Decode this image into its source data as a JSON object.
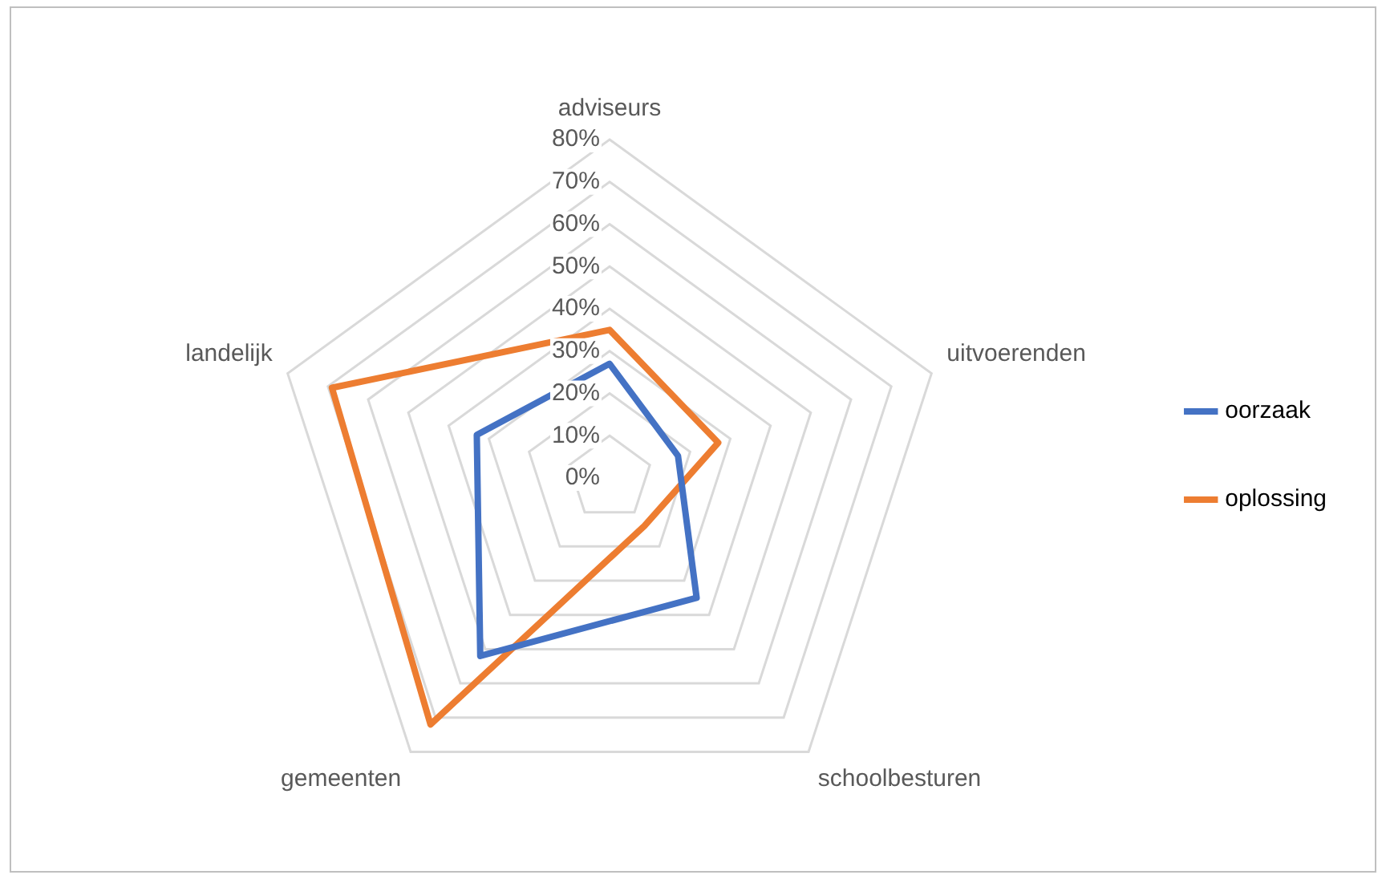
{
  "chart_data": {
    "type": "radar",
    "categories": [
      "adviseurs",
      "uitvoerenden",
      "schoolbesturen",
      "gemeenten",
      "landelijk"
    ],
    "series": [
      {
        "name": "oorzaak",
        "color": "#4472c4",
        "values": [
          27,
          17,
          35,
          52,
          33
        ]
      },
      {
        "name": "oplossing",
        "color": "#ed7d31",
        "values": [
          35,
          27,
          14,
          72,
          69
        ]
      }
    ],
    "ylim": [
      0,
      80
    ],
    "yticks": [
      {
        "value": 0,
        "label": "0%"
      },
      {
        "value": 10,
        "label": "10%"
      },
      {
        "value": 20,
        "label": "20%"
      },
      {
        "value": 30,
        "label": "30%"
      },
      {
        "value": 40,
        "label": "40%"
      },
      {
        "value": 50,
        "label": "50%"
      },
      {
        "value": 60,
        "label": "60%"
      },
      {
        "value": 70,
        "label": "70%"
      },
      {
        "value": 80,
        "label": "80%"
      }
    ],
    "grid": true,
    "legend": "right",
    "marker": "none"
  }
}
